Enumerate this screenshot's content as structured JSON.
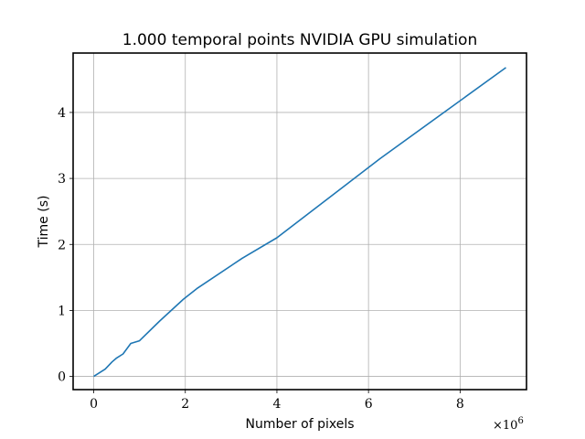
{
  "chart_data": {
    "type": "line",
    "title": "1.000 temporal points NVIDIA GPU simulation",
    "xlabel": "Number of pixels",
    "ylabel": "Time (s)",
    "x_offset_label": "×10",
    "x_offset_exponent": "6",
    "xlim": [
      -0.45,
      9.45
    ],
    "ylim": [
      -0.2,
      4.9
    ],
    "xticks": [
      0,
      2,
      4,
      6,
      8
    ],
    "xtick_labels": [
      "0",
      "2",
      "4",
      "6",
      "8"
    ],
    "yticks": [
      0,
      1,
      2,
      3,
      4
    ],
    "ytick_labels": [
      "0",
      "1",
      "2",
      "3",
      "4"
    ],
    "grid": true,
    "line_color": "#1f77b4",
    "series": [
      {
        "x": [
          0.0,
          0.25,
          0.4,
          0.5,
          0.64,
          0.81,
          1.0,
          1.44,
          1.96,
          2.25,
          3.24,
          4.0,
          6.25,
          9.0
        ],
        "y": [
          0.0,
          0.11,
          0.22,
          0.28,
          0.34,
          0.5,
          0.54,
          0.84,
          1.17,
          1.33,
          1.79,
          2.1,
          3.3,
          4.68
        ]
      }
    ]
  }
}
